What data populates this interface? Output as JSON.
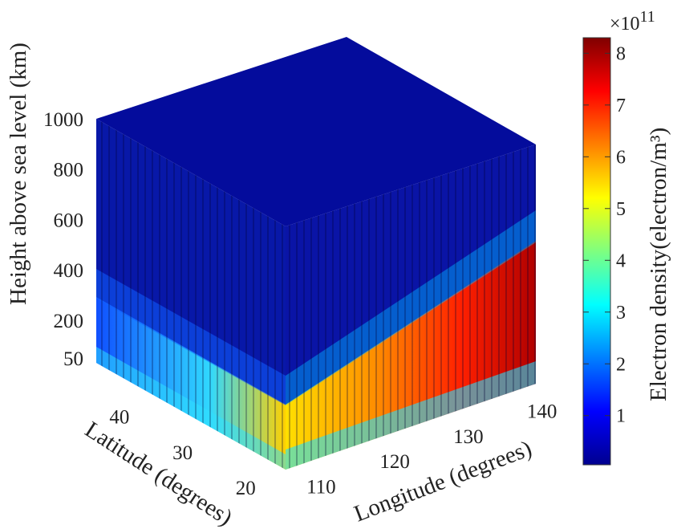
{
  "chart_data": {
    "type": "heatmap",
    "title": "",
    "axes": {
      "x": {
        "label": "Longitude (degrees)",
        "range": [
          108,
          142
        ],
        "ticks": [
          "110",
          "120",
          "130",
          "140"
        ]
      },
      "y": {
        "label": "Latitude (degrees)",
        "range": [
          18,
          48
        ],
        "ticks": [
          "20",
          "30",
          "40"
        ]
      },
      "z": {
        "label": "Height above sea level (km)",
        "range": [
          50,
          1000
        ],
        "ticks": [
          "50",
          "200",
          "400",
          "600",
          "800",
          "1000"
        ]
      }
    },
    "colorbar": {
      "label": "Electron density(electron/m³)",
      "exponent_base": "×10",
      "exponent_power": "11",
      "range": [
        0.05,
        8.3
      ],
      "ticks": [
        "1",
        "2",
        "3",
        "4",
        "5",
        "6",
        "7",
        "8"
      ],
      "colormap": "jet"
    },
    "peak_height_km": 150,
    "peak_density_by_longitude": {
      "110": 4.5,
      "120": 5.3,
      "130": 6.6,
      "140": 8.2
    },
    "grid": false
  }
}
